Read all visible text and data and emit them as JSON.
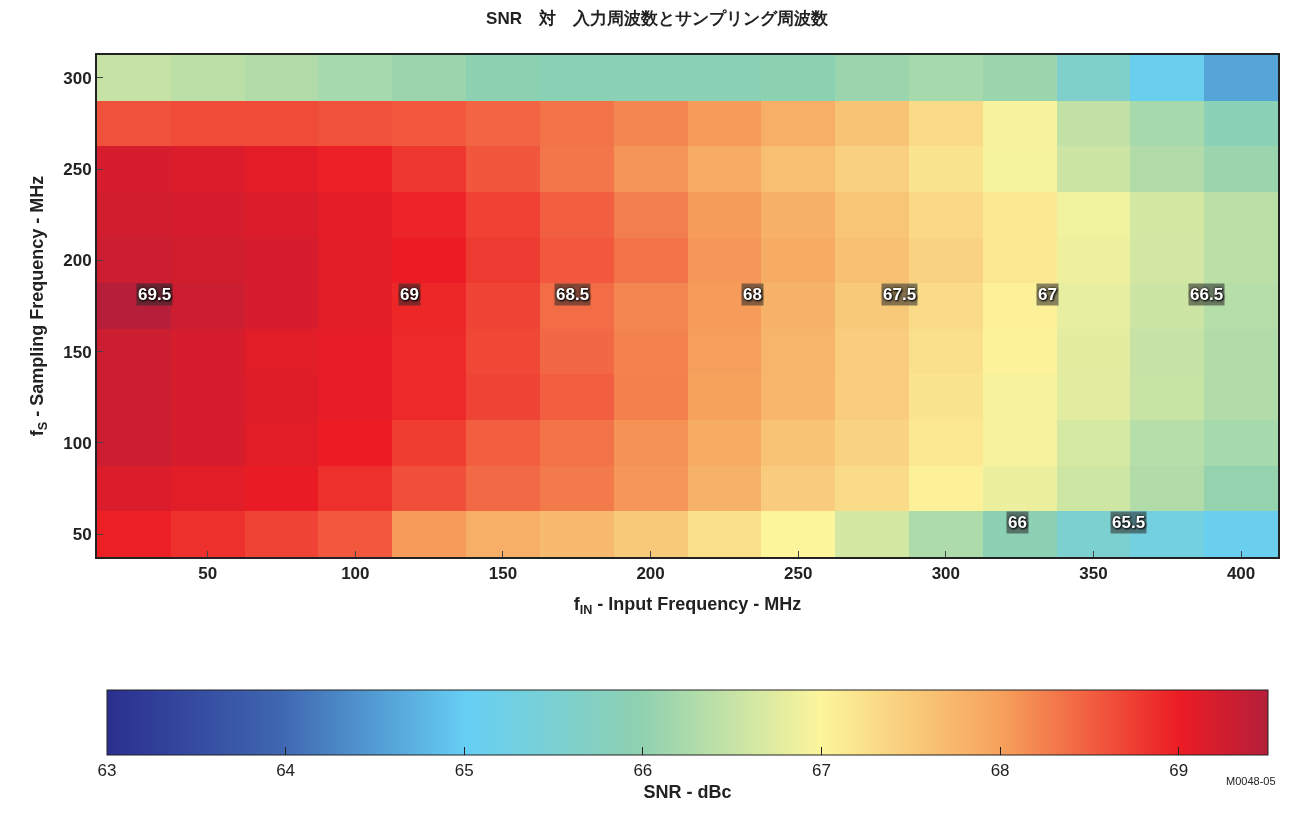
{
  "chart_data": {
    "type": "heatmap",
    "title": "SNR　対　入力周波数とサンプリング周波数",
    "xlabel": "f$_{IN}$ - Input Frequency - MHz",
    "ylabel": "f$_{S}$ - Sampling Frequency - MHz",
    "clabel": "SNR - dBc",
    "categories": [
      null,
      "50",
      null,
      "100",
      null,
      "150",
      null,
      "200",
      null,
      "250",
      null,
      "300",
      null,
      "350",
      null,
      "400"
    ],
    "y_categories": [
      "300",
      null,
      "250",
      null,
      "200",
      null,
      "150",
      null,
      "100",
      null,
      "50"
    ],
    "cells": [
      [
        66.5,
        66.4,
        66.3,
        66.2,
        66.1,
        65.95,
        65.9,
        65.9,
        65.9,
        65.95,
        66.1,
        66.2,
        66.1,
        65.6,
        65.1,
        64.6
      ],
      [
        68.6,
        68.65,
        68.65,
        68.6,
        68.55,
        68.45,
        68.35,
        68.2,
        68.05,
        67.85,
        67.6,
        67.3,
        66.95,
        66.45,
        66.2,
        65.9
      ],
      [
        69.2,
        69.15,
        69.08,
        68.97,
        68.8,
        68.56,
        68.33,
        68.1,
        67.88,
        67.66,
        67.44,
        67.2,
        66.93,
        66.56,
        66.3,
        66.1
      ],
      [
        69.25,
        69.2,
        69.15,
        69.07,
        68.94,
        68.72,
        68.5,
        68.27,
        68.04,
        67.82,
        67.59,
        67.35,
        67.13,
        66.9,
        66.62,
        66.4
      ],
      [
        69.3,
        69.25,
        69.2,
        69.1,
        69.0,
        68.77,
        68.55,
        68.35,
        68.08,
        67.87,
        67.63,
        67.4,
        67.15,
        66.87,
        66.6,
        66.4
      ],
      [
        69.5,
        69.3,
        69.2,
        69.1,
        68.92,
        68.7,
        68.4,
        68.2,
        68.05,
        67.8,
        67.52,
        67.3,
        67.05,
        66.8,
        66.55,
        66.35
      ],
      [
        69.3,
        69.2,
        69.1,
        69.05,
        68.9,
        68.67,
        68.44,
        68.24,
        68.03,
        67.76,
        67.48,
        67.25,
        67.02,
        66.76,
        66.5,
        66.3
      ],
      [
        69.3,
        69.2,
        69.12,
        69.04,
        68.9,
        68.7,
        68.5,
        68.25,
        68.0,
        67.75,
        67.48,
        67.2,
        66.95,
        66.75,
        66.52,
        66.3
      ],
      [
        69.3,
        69.2,
        69.1,
        69.0,
        68.75,
        68.5,
        68.35,
        68.12,
        67.87,
        67.6,
        67.4,
        67.15,
        66.95,
        66.65,
        66.35,
        66.2
      ],
      [
        69.15,
        69.1,
        69.03,
        68.85,
        68.62,
        68.42,
        68.3,
        68.08,
        67.8,
        67.5,
        67.3,
        67.05,
        66.85,
        66.57,
        66.3,
        66.05
      ],
      [
        68.98,
        68.85,
        68.7,
        68.55,
        68.05,
        67.85,
        67.7,
        67.52,
        67.25,
        67.0,
        66.62,
        66.27,
        65.93,
        65.55,
        65.3,
        65.1
      ]
    ],
    "clim": [
      63,
      69.5
    ],
    "cticks": [
      63,
      64,
      65,
      66,
      67,
      68,
      69
    ],
    "annotations": [
      "69.5",
      "69",
      "68.5",
      "68",
      "67.5",
      "67",
      "66.5",
      "66",
      "65.5",
      "M0048-05"
    ]
  }
}
